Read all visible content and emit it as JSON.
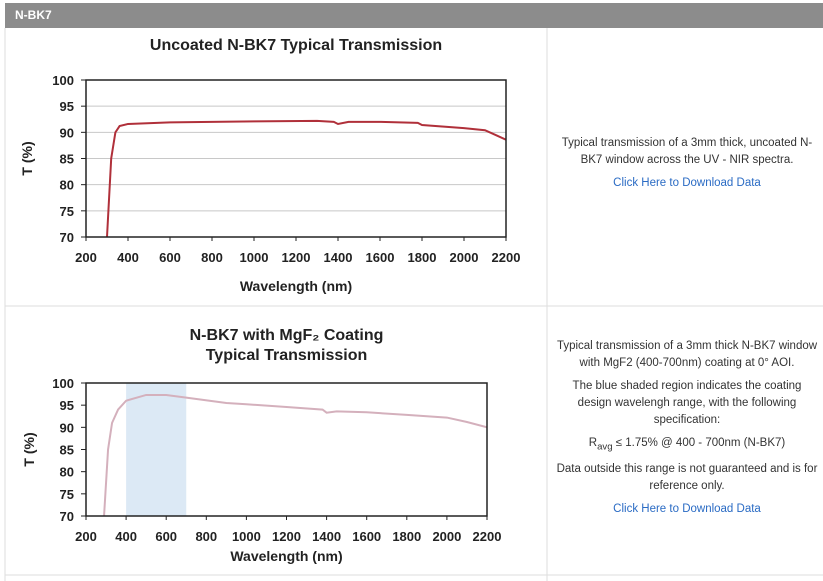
{
  "header": {
    "title": "N-BK7"
  },
  "chart_data": [
    {
      "type": "line",
      "title": [
        "Uncoated N-BK7 Typical Transmission"
      ],
      "x_label": "Wavelength (nm)",
      "y_label": "T (%)",
      "x": [
        300,
        320,
        340,
        360,
        400,
        600,
        1000,
        1300,
        1380,
        1400,
        1450,
        1600,
        1780,
        1800,
        2000,
        2100,
        2150,
        2200
      ],
      "values": [
        70,
        85,
        90,
        91.2,
        91.6,
        91.9,
        92.1,
        92.2,
        92.0,
        91.6,
        92.0,
        92.0,
        91.8,
        91.4,
        90.8,
        90.4,
        89.5,
        88.6
      ],
      "color": "#b0303a",
      "xlim": [
        200,
        2200
      ],
      "xticks": [
        200,
        400,
        600,
        800,
        1000,
        1200,
        1400,
        1600,
        1800,
        2000,
        2200
      ],
      "ylim": [
        70,
        100
      ],
      "yticks": [
        70,
        75,
        80,
        85,
        90,
        95,
        100
      ],
      "grid": true
    },
    {
      "type": "line",
      "title": [
        "N-BK7 with MgF₂ Coating",
        "Typical Transmission"
      ],
      "x_label": "Wavelength (nm)",
      "y_label": "T (%)",
      "x": [
        290,
        310,
        330,
        360,
        400,
        500,
        600,
        700,
        900,
        1000,
        1200,
        1380,
        1400,
        1450,
        1600,
        1800,
        2000,
        2100,
        2200
      ],
      "values": [
        70,
        85,
        91,
        94,
        96,
        97.3,
        97.3,
        96.7,
        95.5,
        95.2,
        94.6,
        94.0,
        93.3,
        93.6,
        93.4,
        92.8,
        92.2,
        91.2,
        90.0
      ],
      "color": "#d4b0bc",
      "shaded_region": [
        400,
        700
      ],
      "shaded_color": "#dce9f5",
      "xlim": [
        200,
        2200
      ],
      "xticks": [
        200,
        400,
        600,
        800,
        1000,
        1200,
        1400,
        1600,
        1800,
        2000,
        2200
      ],
      "ylim": [
        70,
        100
      ],
      "yticks": [
        70,
        75,
        80,
        85,
        90,
        95,
        100
      ],
      "grid": false
    }
  ],
  "descriptions": [
    {
      "paragraphs": [
        "Typical transmission of a 3mm thick, uncoated N-BK7 window across the UV - NIR spectra."
      ],
      "link": "Click Here to Download Data"
    },
    {
      "paragraphs": [
        "Typical transmission of a 3mm thick N-BK7 window with MgF2 (400-700nm) coating at 0° AOI.",
        "The blue shaded region indicates the coating design wavelengh range, with the following specification:"
      ],
      "spec": {
        "symbol": "R",
        "subscript": "avg",
        "text": " ≤ 1.75% @ 400 - 700nm (N-BK7)"
      },
      "note": "Data outside this range is not guaranteed and is for reference only.",
      "link": "Click Here to Download Data"
    }
  ]
}
